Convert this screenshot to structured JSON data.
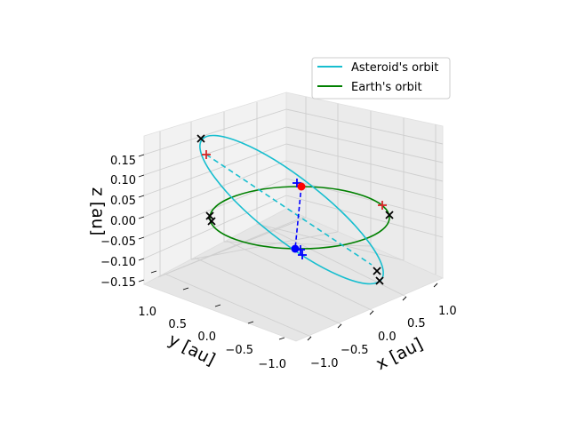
{
  "chart_data": {
    "type": "3d-line",
    "xlabel": "x [au]",
    "ylabel": "y [au]",
    "zlabel": "z [au]",
    "x_ticks": [
      "−1.0",
      "−0.5",
      "0.0",
      "0.5",
      "1.0"
    ],
    "y_ticks": [
      "−1.0",
      "−0.5",
      "0.0",
      "0.5",
      "1.0"
    ],
    "z_ticks": [
      "−0.15",
      "−0.10",
      "−0.05",
      "0.00",
      "0.05",
      "0.10",
      "0.15"
    ],
    "xlim": [
      -1.2,
      1.2
    ],
    "ylim": [
      -1.2,
      1.2
    ],
    "zlim": [
      -0.17,
      0.17
    ],
    "grid": true,
    "legend_position": "top-right",
    "series": [
      {
        "name": "Asteroid's orbit",
        "color": "#17becf",
        "style": "solid"
      },
      {
        "name": "Earth's orbit",
        "color": "#008000",
        "style": "solid"
      }
    ],
    "annotations": [
      {
        "kind": "line-of-nodes",
        "color": "#17becf",
        "style": "dashed"
      },
      {
        "kind": "closest-approach",
        "color": "#0000ff",
        "style": "dashed"
      },
      {
        "kind": "cross-markers",
        "color": "#000000",
        "marker": "x"
      },
      {
        "kind": "node-markers",
        "color": "#d62728",
        "marker": "+"
      },
      {
        "kind": "approach-markers",
        "color": "#0000ff",
        "marker": "+"
      },
      {
        "kind": "positions",
        "colors": [
          "#ff0000",
          "#0000ff"
        ],
        "marker": "o"
      }
    ]
  }
}
